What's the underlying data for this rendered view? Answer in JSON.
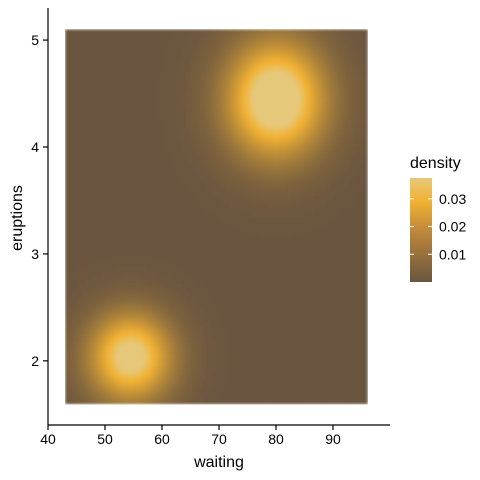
{
  "chart_data": {
    "type": "heatmap",
    "xlabel": "waiting",
    "ylabel": "eruptions",
    "xlim": [
      40,
      100
    ],
    "ylim": [
      1.4,
      5.3
    ],
    "x_ticks": [
      40,
      50,
      60,
      70,
      80,
      90
    ],
    "y_ticks": [
      2,
      3,
      4,
      5
    ],
    "tile_extent": {
      "x": [
        43,
        96
      ],
      "y": [
        1.6,
        5.1
      ]
    },
    "density_components": [
      {
        "weight": 0.36,
        "mean": [
          54.5,
          2.04
        ],
        "sd": [
          5.0,
          0.28
        ]
      },
      {
        "weight": 0.64,
        "mean": [
          80.0,
          4.45
        ],
        "sd": [
          5.9,
          0.37
        ]
      }
    ],
    "color_scale": {
      "low": "#6b563f",
      "mid": "#f2b233",
      "high": "#e6c87a",
      "domain": [
        0,
        0.037
      ]
    },
    "legend": {
      "title": "density",
      "breaks": [
        0.01,
        0.02,
        0.03
      ],
      "labels": [
        "0.01",
        "0.02",
        "0.03"
      ],
      "position": "right"
    },
    "grid": false
  }
}
